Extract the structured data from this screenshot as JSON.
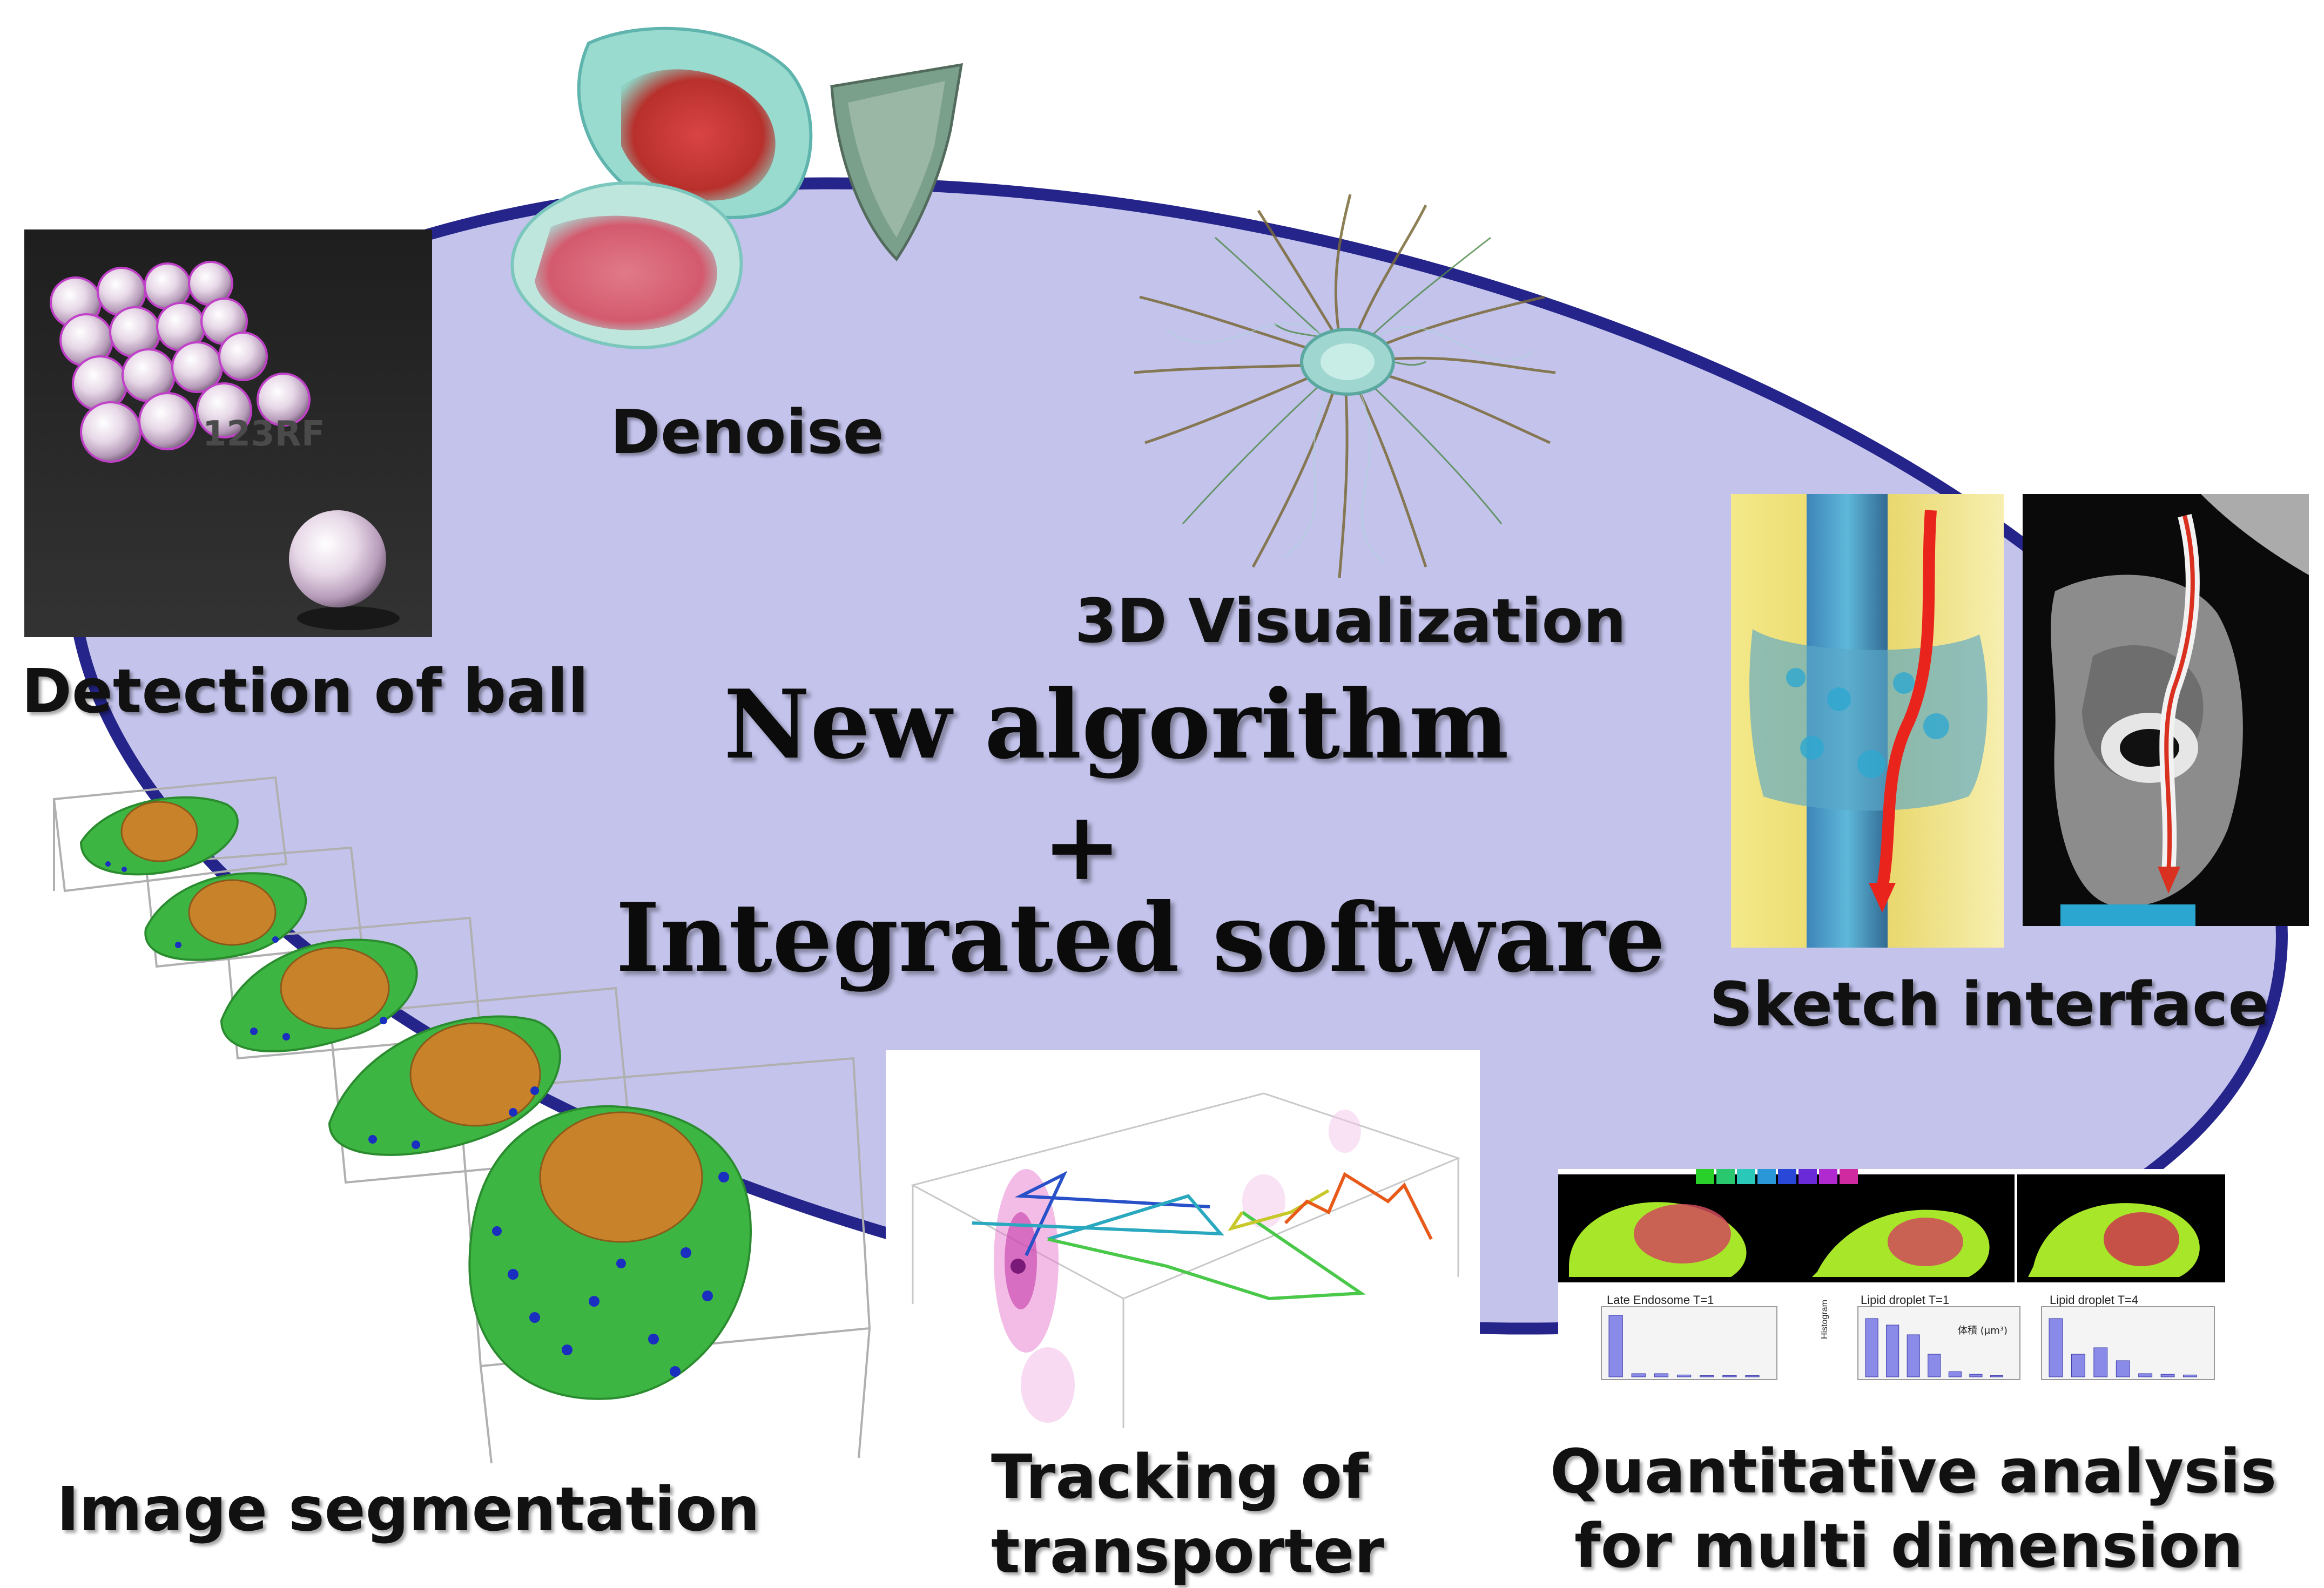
{
  "center": {
    "line1": "New algorithm",
    "plus": "+",
    "line2": "Integrated software"
  },
  "labels": {
    "detection": "Detection of ball",
    "denoise": "Denoise",
    "visualization": "3D Visualization",
    "sketch": "Sketch interface",
    "segmentation": "Image segmentation",
    "tracking_line1": "Tracking of",
    "tracking_line2": "transporter",
    "quant_line1": "Quantitative analysis",
    "quant_line2": "for multi dimension"
  },
  "quant_panel": {
    "chart1_title": "Late Endosome T=1",
    "chart2_title": "Lipid droplet T=1",
    "chart3_title": "Lipid droplet T=4",
    "y_axis_label": "Histogram",
    "legend_text": "体積 (μm³)",
    "chart1_values": [
      0.95,
      0.05,
      0.05,
      0.03,
      0.02,
      0.02,
      0.02
    ],
    "chart2_values": [
      0.9,
      0.8,
      0.65,
      0.35,
      0.08,
      0.04,
      0.02
    ],
    "chart3_values": [
      0.9,
      0.35,
      0.45,
      0.25,
      0.05,
      0.04,
      0.03
    ]
  },
  "colors": {
    "ellipse_fill": "#c3c3ec",
    "ellipse_border": "#24248a",
    "cell_green": "#39b33b",
    "nucleus_orange": "#c8832a"
  }
}
